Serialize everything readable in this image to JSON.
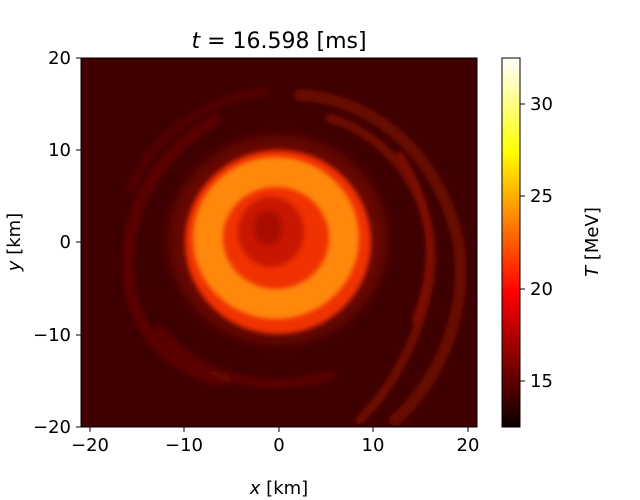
{
  "chart_data": {
    "type": "heatmap",
    "title_var": "t",
    "title_rest": " = 16.598 [ms]",
    "xlabel_var": "x",
    "xlabel_unit": " [km]",
    "ylabel_var": "y",
    "ylabel_unit": " [km]",
    "xlim": [
      -21.7,
      21.7
    ],
    "ylim": [
      -20,
      20
    ],
    "xticks": [
      -20,
      -10,
      0,
      10,
      20
    ],
    "xtick_labels": [
      "−20",
      "−10",
      "0",
      "10",
      "20"
    ],
    "yticks": [
      20,
      10,
      0,
      -10,
      -20
    ],
    "ytick_labels": [
      "20",
      "10",
      "0",
      "−10",
      "−20"
    ],
    "colorbar": {
      "label_var": "T",
      "label_unit": " [MeV]",
      "colormap": "hot",
      "range": [
        12.5,
        32.5
      ],
      "ticks": [
        30,
        25,
        20,
        15
      ],
      "tick_labels": [
        "30",
        "25",
        "20",
        "15"
      ]
    },
    "field": {
      "background_T": 14.2,
      "core_center_xy": [
        0,
        0
      ],
      "core_min_T": 17.5,
      "ring_peak_T": 22.5,
      "ring_radius_km": 6,
      "disk_outer_radius_km": 10.5,
      "spiral_arms_T": 16.5
    }
  }
}
